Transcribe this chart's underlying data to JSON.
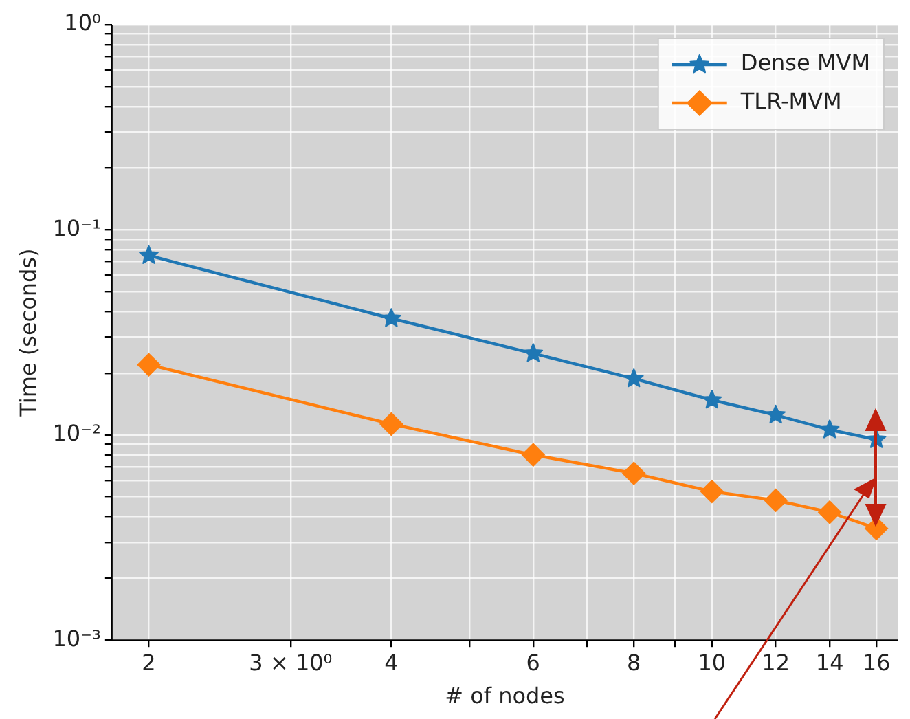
{
  "chart_data": {
    "type": "line",
    "xlabel": "# of nodes",
    "ylabel": "Time (seconds)",
    "log": "xy",
    "grid": true,
    "legend": "top right",
    "line_style": "solid",
    "x": [
      2,
      4,
      6,
      8,
      10,
      12,
      14,
      16
    ],
    "series": [
      {
        "name": "Dense MVM",
        "color": "#1f77b4",
        "marker": "star",
        "values": [
          0.075,
          0.037,
          0.025,
          0.0188,
          0.0148,
          0.0125,
          0.0106,
          0.0095
        ]
      },
      {
        "name": "TLR-MVM",
        "color": "#ff7f0e",
        "marker": "diamond",
        "values": [
          0.022,
          0.0113,
          0.008,
          0.0065,
          0.0053,
          0.0048,
          0.0042,
          0.0035
        ]
      }
    ],
    "xlim": [
      1.8,
      17
    ],
    "xticks": [
      2,
      {
        "value": 3,
        "label": "3 × 10⁰"
      },
      4,
      {
        "value": 5,
        "label": null
      },
      6,
      {
        "value": 7,
        "label": null
      },
      8,
      {
        "value": 9,
        "label": null
      },
      10,
      12,
      14,
      16
    ],
    "ylim": [
      0.001,
      1
    ],
    "yticks": [
      {
        "value": 0.001,
        "label": "10⁻³"
      },
      {
        "value": 0.002,
        "label": null
      },
      {
        "value": 0.003,
        "label": null
      },
      {
        "value": 0.004,
        "label": null
      },
      {
        "value": 0.005,
        "label": null
      },
      {
        "value": 0.006,
        "label": null
      },
      {
        "value": 0.007,
        "label": null
      },
      {
        "value": 0.008,
        "label": null
      },
      {
        "value": 0.009,
        "label": null
      },
      {
        "value": 0.01,
        "label": "10⁻²"
      },
      {
        "value": 0.02,
        "label": null
      },
      {
        "value": 0.03,
        "label": null
      },
      {
        "value": 0.04,
        "label": null
      },
      {
        "value": 0.05,
        "label": null
      },
      {
        "value": 0.06,
        "label": null
      },
      {
        "value": 0.07,
        "label": null
      },
      {
        "value": 0.08,
        "label": null
      },
      {
        "value": 0.09,
        "label": null
      },
      {
        "value": 0.1,
        "label": "10⁻¹"
      },
      {
        "value": 0.2,
        "label": null
      },
      {
        "value": 0.3,
        "label": null
      },
      {
        "value": 0.4,
        "label": null
      },
      {
        "value": 0.5,
        "label": null
      },
      {
        "value": 0.6,
        "label": null
      },
      {
        "value": 0.7,
        "label": null
      },
      {
        "value": 0.8,
        "label": null
      },
      {
        "value": 0.9,
        "label": null
      },
      {
        "value": 1,
        "label": "10⁰"
      }
    ]
  }
}
